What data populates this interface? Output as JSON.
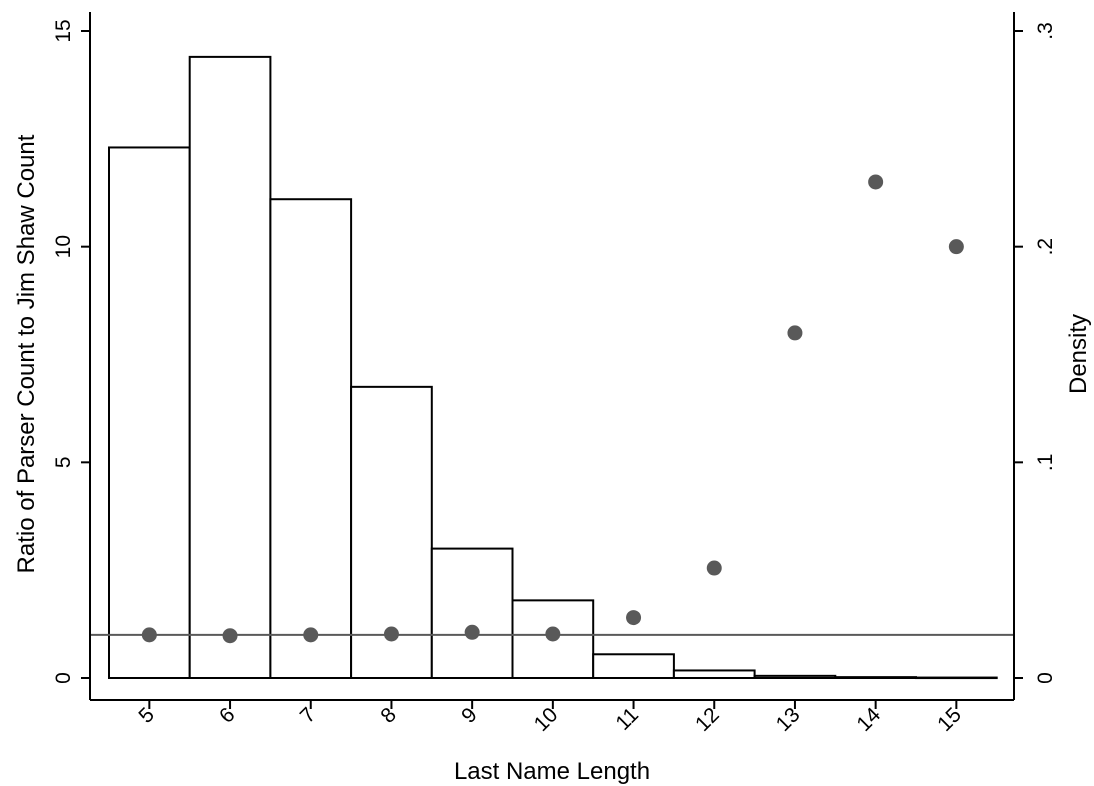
{
  "chart_data": {
    "type": "bar",
    "xlabel": "Last Name Length",
    "ylabel_left": "Ratio of Parser Count to Jim Shaw Count",
    "ylabel_right": "Density",
    "x_ticks": [
      "5",
      "6",
      "7",
      "8",
      "9",
      "10",
      "11",
      "12",
      "13",
      "14",
      "15"
    ],
    "y_left_ticks": [
      "0",
      "5",
      "10",
      "15"
    ],
    "y_right_ticks": [
      "0",
      ".1",
      ".2",
      ".3"
    ],
    "xlim": [
      4.5,
      15.5
    ],
    "ylim_left": [
      0,
      15
    ],
    "ylim_right": [
      0,
      0.3
    ],
    "reference_line_y": 1,
    "grid": false,
    "series": [
      {
        "type": "histogram",
        "axis": "right",
        "bins": [
          {
            "start": 4.5,
            "end": 5.5,
            "density": 0.246
          },
          {
            "start": 5.5,
            "end": 6.5,
            "density": 0.288
          },
          {
            "start": 6.5,
            "end": 7.5,
            "density": 0.222
          },
          {
            "start": 7.5,
            "end": 8.5,
            "density": 0.135
          },
          {
            "start": 8.5,
            "end": 9.5,
            "density": 0.06
          },
          {
            "start": 9.5,
            "end": 10.5,
            "density": 0.036
          },
          {
            "start": 10.5,
            "end": 11.5,
            "density": 0.011
          },
          {
            "start": 11.5,
            "end": 12.5,
            "density": 0.0035
          },
          {
            "start": 12.5,
            "end": 13.5,
            "density": 0.001
          },
          {
            "start": 13.5,
            "end": 14.5,
            "density": 0.0004
          },
          {
            "start": 14.5,
            "end": 15.5,
            "density": 0.0002
          }
        ]
      },
      {
        "type": "scatter",
        "axis": "left",
        "points": [
          {
            "x": 5,
            "y": 1.0
          },
          {
            "x": 6,
            "y": 0.98
          },
          {
            "x": 7,
            "y": 1.0
          },
          {
            "x": 8,
            "y": 1.02
          },
          {
            "x": 9,
            "y": 1.06
          },
          {
            "x": 10,
            "y": 1.02
          },
          {
            "x": 11,
            "y": 1.4
          },
          {
            "x": 12,
            "y": 2.55
          },
          {
            "x": 13,
            "y": 8.0
          },
          {
            "x": 14,
            "y": 11.5
          },
          {
            "x": 15,
            "y": 10.0
          }
        ]
      }
    ],
    "colors": {
      "bar_fill": "#ffffff",
      "bar_stroke": "#000000",
      "point": "#595959",
      "reference_line": "#595959",
      "axis": "#000000"
    }
  }
}
